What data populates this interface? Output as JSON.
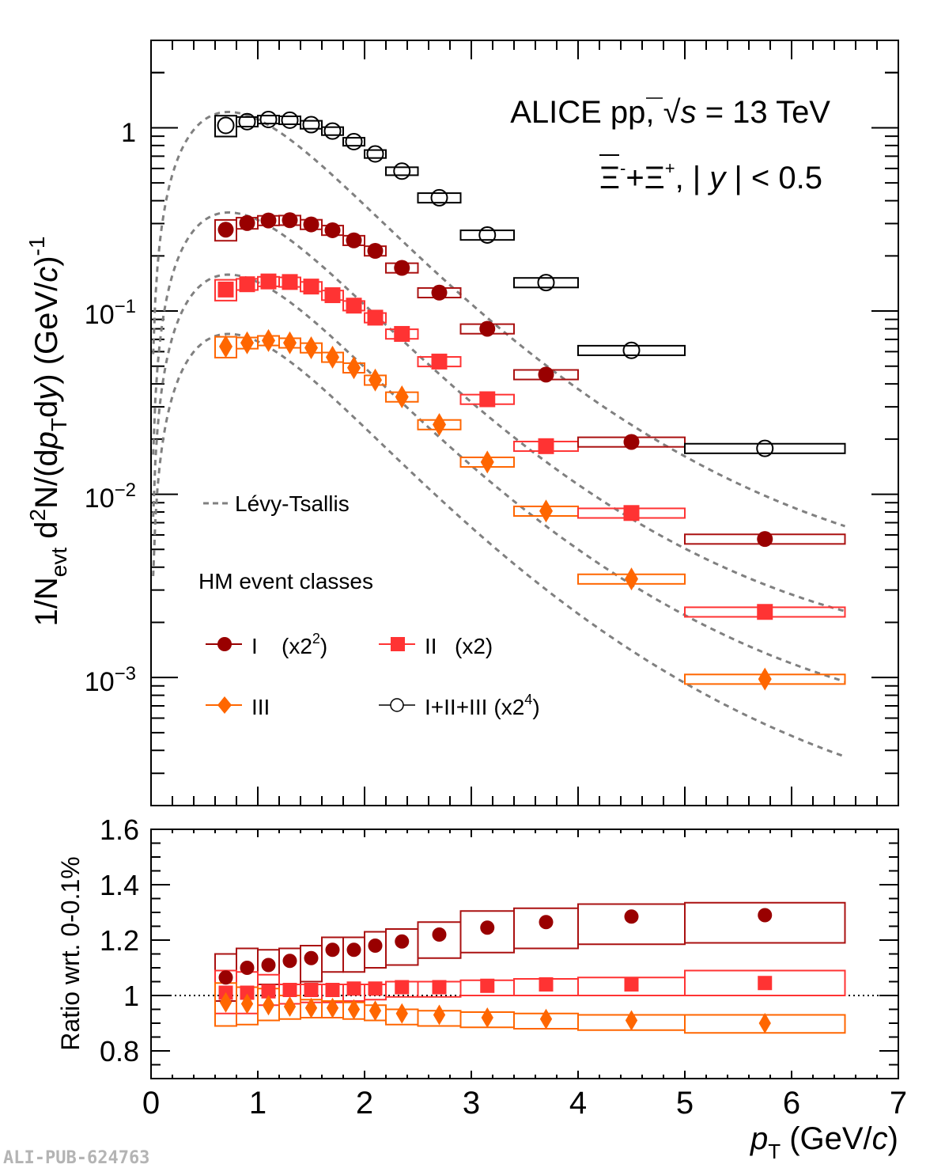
{
  "chart_data": [
    {
      "panel": "spectra",
      "type": "scatter",
      "yscale": "log",
      "title": "ALICE pp, √s = 13 TeV",
      "title_parts": {
        "prefix": "ALICE pp, ",
        "sqrt": "√",
        "s": "s",
        "suffix": " = 13 TeV"
      },
      "subtitle": "Ξ⁻+Ξ̄⁺, |y| < 0.5",
      "subtitle_parts": {
        "xi": "Ξ",
        "minus": "-",
        "plus_sign": "+",
        "xibar": "Ξ",
        "plus": "+",
        "rest_a": ", | ",
        "y": "y",
        "rest_b": " | < 0.5"
      },
      "ylabel": "1/N_evt d²N/(dp_T dy) (GeV/c)⁻¹",
      "ylabel_parts": {
        "a": "1/N",
        "evt": "evt",
        "b": " d",
        "sq": "2",
        "c": "N/(d",
        "p": "p",
        "T": "T",
        "d": "d",
        "y": "y",
        "e": ") (GeV/",
        "cc": "c",
        "f": ")",
        "exp": "-1"
      },
      "xlim": [
        0,
        7
      ],
      "ylim": [
        0.0002,
        3.0
      ],
      "ytick_labels": [
        {
          "value": 1,
          "base": "1",
          "exp": ""
        },
        {
          "value": 0.1,
          "base": "10",
          "exp": "−1"
        },
        {
          "value": 0.01,
          "base": "10",
          "exp": "−2"
        },
        {
          "value": 0.001,
          "base": "10",
          "exp": "−3"
        }
      ],
      "bin_edges": [
        0.6,
        0.8,
        1.0,
        1.2,
        1.4,
        1.6,
        1.8,
        2.0,
        2.2,
        2.5,
        2.9,
        3.4,
        4.0,
        5.0,
        6.5
      ],
      "x": [
        0.7,
        0.9,
        1.1,
        1.3,
        1.5,
        1.7,
        1.9,
        2.1,
        2.35,
        2.7,
        3.15,
        3.7,
        4.5,
        5.75
      ],
      "series": [
        {
          "name": "I+II+III (x2⁴)",
          "key": "all",
          "marker": "open-circle",
          "color": "#000000",
          "values": [
            1.03,
            1.08,
            1.11,
            1.1,
            1.04,
            0.96,
            0.84,
            0.72,
            0.58,
            0.415,
            0.26,
            0.143,
            0.061,
            0.0178
          ],
          "syst_rel": [
            0.13,
            0.06,
            0.05,
            0.05,
            0.05,
            0.05,
            0.05,
            0.05,
            0.05,
            0.06,
            0.06,
            0.06,
            0.06,
            0.06
          ]
        },
        {
          "name": "I (x2²)",
          "key": "I",
          "marker": "filled-circle",
          "color": "#990000",
          "values": [
            0.278,
            0.302,
            0.312,
            0.313,
            0.297,
            0.276,
            0.243,
            0.213,
            0.172,
            0.126,
            0.08,
            0.045,
            0.0193,
            0.0057
          ],
          "syst_rel": [
            0.13,
            0.07,
            0.06,
            0.06,
            0.06,
            0.06,
            0.06,
            0.06,
            0.06,
            0.06,
            0.06,
            0.06,
            0.06,
            0.06
          ]
        },
        {
          "name": "II (x2)",
          "key": "II",
          "marker": "filled-square",
          "color": "#ff3333",
          "values": [
            0.131,
            0.14,
            0.145,
            0.144,
            0.136,
            0.122,
            0.107,
            0.092,
            0.075,
            0.053,
            0.033,
            0.0183,
            0.0079,
            0.00228
          ],
          "syst_rel": [
            0.13,
            0.07,
            0.06,
            0.06,
            0.06,
            0.06,
            0.06,
            0.06,
            0.06,
            0.06,
            0.06,
            0.06,
            0.06,
            0.06
          ]
        },
        {
          "name": "III",
          "key": "III",
          "marker": "filled-diamond",
          "color": "#ff6600",
          "values": [
            0.064,
            0.067,
            0.069,
            0.067,
            0.063,
            0.056,
            0.049,
            0.042,
            0.034,
            0.024,
            0.015,
            0.0081,
            0.00345,
            0.00098
          ],
          "syst_rel": [
            0.13,
            0.07,
            0.06,
            0.06,
            0.06,
            0.06,
            0.06,
            0.06,
            0.06,
            0.06,
            0.06,
            0.06,
            0.06,
            0.06
          ]
        }
      ],
      "fits": {
        "name": "Lévy-Tsallis",
        "color": "#808080",
        "x_range": [
          0.0,
          6.5
        ],
        "curves": [
          {
            "key": "all",
            "peak_x": 1.1,
            "peak_y": 1.22,
            "end_y": 0.0067
          },
          {
            "key": "I",
            "peak_x": 1.1,
            "peak_y": 0.345,
            "end_y": 0.0023
          },
          {
            "key": "II",
            "peak_x": 1.1,
            "peak_y": 0.158,
            "end_y": 0.00095
          },
          {
            "key": "III",
            "peak_x": 1.05,
            "peak_y": 0.075,
            "end_y": 0.00037
          }
        ]
      },
      "legend": {
        "fit_label": "Lévy-Tsallis",
        "header": "HM event classes",
        "entries": [
          {
            "key": "I",
            "label": "I",
            "scale": "(x2",
            "scale_exp": "2",
            "scale_close": ")"
          },
          {
            "key": "II",
            "label": "II",
            "scale": "(x2)",
            "scale_exp": "",
            "scale_close": ""
          },
          {
            "key": "III",
            "label": "III",
            "scale": "",
            "scale_exp": "",
            "scale_close": ""
          },
          {
            "key": "all",
            "label": "I+II+III",
            "scale": "(x2",
            "scale_exp": "4",
            "scale_close": ")"
          }
        ],
        "placement": "bottom-left"
      }
    },
    {
      "panel": "ratio",
      "type": "scatter",
      "ylabel": "Ratio wrt. 0-0.1%",
      "xlabel": "p_T (GeV/c)",
      "xlabel_parts": {
        "p": "p",
        "T": "T",
        "rest": " (GeV/",
        "c": "c",
        "close": ")"
      },
      "xlim": [
        0,
        7
      ],
      "ylim": [
        0.7,
        1.6
      ],
      "xticks": [
        "0",
        "1",
        "2",
        "3",
        "4",
        "5",
        "6",
        "7"
      ],
      "yticks": [
        "0.8",
        "1",
        "1.2",
        "1.4",
        "1.6"
      ],
      "reference_line": 1.0,
      "bin_edges": [
        0.6,
        0.8,
        1.0,
        1.2,
        1.4,
        1.6,
        1.8,
        2.0,
        2.2,
        2.5,
        2.9,
        3.4,
        4.0,
        5.0,
        6.5
      ],
      "x": [
        0.7,
        0.9,
        1.1,
        1.3,
        1.5,
        1.7,
        1.9,
        2.1,
        2.35,
        2.7,
        3.15,
        3.7,
        4.5,
        5.75
      ],
      "series": [
        {
          "name": "I",
          "key": "I",
          "marker": "filled-circle",
          "color": "#990000",
          "values": [
            1.065,
            1.1,
            1.11,
            1.125,
            1.135,
            1.165,
            1.165,
            1.18,
            1.195,
            1.22,
            1.245,
            1.265,
            1.285,
            1.29
          ],
          "syst_low": [
            0.98,
            1.03,
            1.04,
            1.04,
            1.05,
            1.085,
            1.085,
            1.1,
            1.11,
            1.135,
            1.155,
            1.17,
            1.185,
            1.19
          ],
          "syst_high": [
            1.15,
            1.17,
            1.165,
            1.17,
            1.18,
            1.21,
            1.21,
            1.23,
            1.24,
            1.265,
            1.305,
            1.315,
            1.33,
            1.335
          ]
        },
        {
          "name": "II",
          "key": "II",
          "marker": "filled-square",
          "color": "#ff3333",
          "values": [
            1.01,
            1.01,
            1.015,
            1.02,
            1.02,
            1.02,
            1.025,
            1.025,
            1.03,
            1.03,
            1.035,
            1.04,
            1.04,
            1.045
          ],
          "syst_low": [
            0.935,
            0.935,
            0.965,
            0.97,
            0.975,
            0.975,
            0.98,
            0.985,
            0.995,
            0.995,
            1.0,
            1.0,
            1.0,
            1.0
          ],
          "syst_high": [
            1.09,
            1.085,
            1.075,
            1.04,
            1.04,
            1.04,
            1.04,
            1.04,
            1.05,
            1.05,
            1.055,
            1.06,
            1.065,
            1.09
          ]
        },
        {
          "name": "III",
          "key": "III",
          "marker": "filled-diamond",
          "color": "#ff6600",
          "values": [
            0.975,
            0.97,
            0.965,
            0.96,
            0.955,
            0.955,
            0.95,
            0.945,
            0.935,
            0.93,
            0.92,
            0.915,
            0.91,
            0.9
          ],
          "syst_low": [
            0.89,
            0.895,
            0.91,
            0.915,
            0.92,
            0.92,
            0.915,
            0.91,
            0.895,
            0.89,
            0.885,
            0.88,
            0.875,
            0.865
          ],
          "syst_high": [
            1.045,
            1.03,
            1.025,
            1.0,
            0.985,
            0.98,
            0.975,
            0.965,
            0.95,
            0.945,
            0.94,
            0.935,
            0.93,
            0.93
          ]
        }
      ]
    }
  ],
  "watermark": "ALI-PUB-624763"
}
